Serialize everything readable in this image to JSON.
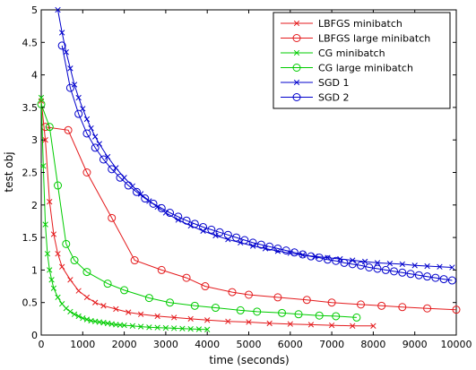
{
  "chart_data": {
    "type": "line",
    "xlabel": "time (seconds)",
    "ylabel": "test obj",
    "xlim": [
      0,
      10000
    ],
    "ylim": [
      0,
      5
    ],
    "x_ticks": [
      "0",
      "1000",
      "2000",
      "3000",
      "4000",
      "5000",
      "6000",
      "7000",
      "8000",
      "9000",
      "10000"
    ],
    "y_ticks": [
      "0",
      "0.5",
      "1",
      "1.5",
      "2",
      "2.5",
      "3",
      "3.5",
      "4",
      "4.5",
      "5"
    ],
    "legend_position": "top-right",
    "grid": false,
    "series": [
      {
        "name": "LBFGS minibatch",
        "color": "#e41a1c",
        "marker": "x",
        "x": [
          0,
          100,
          200,
          300,
          400,
          500,
          700,
          900,
          1100,
          1300,
          1500,
          1800,
          2100,
          2400,
          2800,
          3200,
          3600,
          4000,
          4500,
          5000,
          5500,
          6000,
          6500,
          7000,
          7500,
          8000
        ],
        "y": [
          3.6,
          3.0,
          2.05,
          1.55,
          1.25,
          1.05,
          0.85,
          0.68,
          0.58,
          0.5,
          0.45,
          0.4,
          0.35,
          0.32,
          0.29,
          0.27,
          0.25,
          0.23,
          0.21,
          0.2,
          0.18,
          0.17,
          0.16,
          0.15,
          0.14,
          0.14
        ]
      },
      {
        "name": "LBFGS large minibatch",
        "color": "#e41a1c",
        "marker": "o",
        "x": [
          100,
          650,
          1100,
          1700,
          2250,
          2900,
          3500,
          3950,
          4600,
          5000,
          5700,
          6400,
          7000,
          7700,
          8200,
          8700,
          9300,
          10000
        ],
        "y": [
          3.2,
          3.15,
          2.5,
          1.8,
          1.15,
          1.0,
          0.88,
          0.75,
          0.66,
          0.62,
          0.58,
          0.54,
          0.5,
          0.47,
          0.45,
          0.43,
          0.41,
          0.39
        ]
      },
      {
        "name": "CG minibatch",
        "color": "#00cc00",
        "marker": "x",
        "x": [
          0,
          50,
          100,
          150,
          200,
          250,
          300,
          400,
          500,
          600,
          700,
          800,
          900,
          1000,
          1100,
          1200,
          1300,
          1400,
          1500,
          1600,
          1700,
          1800,
          1900,
          2000,
          2200,
          2400,
          2600,
          2800,
          3000,
          3200,
          3400,
          3600,
          3800,
          4000
        ],
        "y": [
          3.65,
          2.6,
          1.7,
          1.25,
          1.0,
          0.85,
          0.72,
          0.58,
          0.48,
          0.41,
          0.36,
          0.32,
          0.29,
          0.26,
          0.24,
          0.22,
          0.21,
          0.2,
          0.19,
          0.18,
          0.17,
          0.16,
          0.155,
          0.15,
          0.14,
          0.13,
          0.12,
          0.115,
          0.11,
          0.105,
          0.1,
          0.095,
          0.09,
          0.085
        ]
      },
      {
        "name": "CG large minibatch",
        "color": "#00cc00",
        "marker": "o",
        "x": [
          0,
          200,
          400,
          600,
          800,
          1100,
          1600,
          2000,
          2600,
          3100,
          3700,
          4200,
          4800,
          5200,
          5800,
          6200,
          6700,
          7100,
          7600
        ],
        "y": [
          3.55,
          3.2,
          2.3,
          1.4,
          1.15,
          0.97,
          0.79,
          0.69,
          0.57,
          0.5,
          0.45,
          0.42,
          0.38,
          0.36,
          0.34,
          0.32,
          0.3,
          0.29,
          0.27
        ]
      },
      {
        "name": "SGD 1",
        "color": "#0000cc",
        "marker": "x",
        "x": [
          400,
          500,
          600,
          700,
          800,
          900,
          1000,
          1100,
          1200,
          1300,
          1400,
          1600,
          1800,
          2000,
          2200,
          2400,
          2600,
          2800,
          3000,
          3300,
          3600,
          3900,
          4200,
          4500,
          4800,
          5100,
          5400,
          5700,
          6000,
          6300,
          6600,
          6900,
          7200,
          7500,
          7800,
          8100,
          8400,
          8700,
          9000,
          9300,
          9600,
          9900
        ],
        "y": [
          5.0,
          4.65,
          4.35,
          4.1,
          3.85,
          3.65,
          3.48,
          3.32,
          3.18,
          3.05,
          2.94,
          2.74,
          2.57,
          2.42,
          2.29,
          2.17,
          2.06,
          1.97,
          1.88,
          1.77,
          1.68,
          1.6,
          1.53,
          1.47,
          1.42,
          1.37,
          1.33,
          1.29,
          1.26,
          1.23,
          1.21,
          1.19,
          1.17,
          1.15,
          1.13,
          1.11,
          1.1,
          1.09,
          1.07,
          1.06,
          1.05,
          1.04
        ]
      },
      {
        "name": "SGD 2",
        "color": "#0000cc",
        "marker": "o",
        "x": [
          500,
          700,
          900,
          1100,
          1300,
          1500,
          1700,
          1900,
          2100,
          2300,
          2500,
          2700,
          2900,
          3100,
          3300,
          3500,
          3700,
          3900,
          4100,
          4300,
          4500,
          4700,
          4900,
          5100,
          5300,
          5500,
          5700,
          5900,
          6100,
          6300,
          6500,
          6700,
          6900,
          7100,
          7300,
          7500,
          7700,
          7900,
          8100,
          8300,
          8500,
          8700,
          8900,
          9100,
          9300,
          9500,
          9700,
          9900
        ],
        "y": [
          4.45,
          3.8,
          3.4,
          3.1,
          2.88,
          2.7,
          2.55,
          2.42,
          2.3,
          2.2,
          2.1,
          2.02,
          1.95,
          1.88,
          1.82,
          1.76,
          1.71,
          1.66,
          1.62,
          1.58,
          1.54,
          1.5,
          1.46,
          1.42,
          1.39,
          1.36,
          1.33,
          1.3,
          1.27,
          1.24,
          1.21,
          1.19,
          1.16,
          1.14,
          1.11,
          1.09,
          1.07,
          1.04,
          1.02,
          1.0,
          0.98,
          0.96,
          0.94,
          0.92,
          0.9,
          0.88,
          0.86,
          0.84
        ]
      }
    ]
  }
}
